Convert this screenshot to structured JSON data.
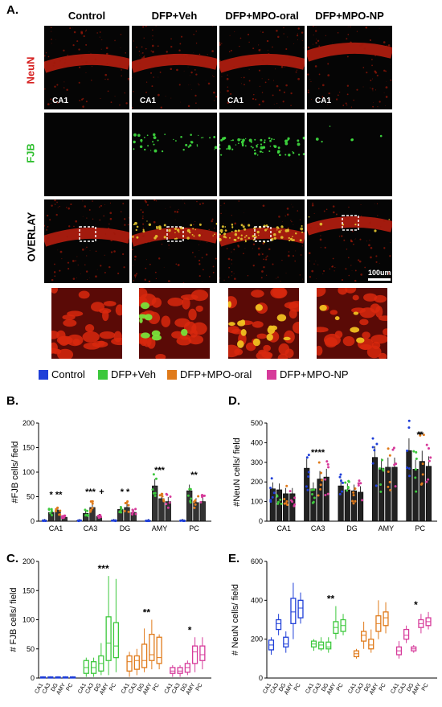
{
  "panel_labels": {
    "A": "A.",
    "B": "B.",
    "C": "C.",
    "D": "D.",
    "E": "E."
  },
  "columns": [
    "Control",
    "DFP+Veh",
    "DFP+MPO-oral",
    "DFP+MPO-NP"
  ],
  "rows": {
    "neun": "NeuN",
    "fjb": "FJB",
    "overlay": "OVERLAY"
  },
  "region_tag": "CA1",
  "scale_bar": "100um",
  "colors": {
    "control": "#1f3fd8",
    "veh": "#3cc83c",
    "oral": "#e07a1a",
    "np": "#d63a9a",
    "neun_label": "#d62020",
    "fjb_label": "#2fbf2f"
  },
  "legend": [
    {
      "label": "Control",
      "color": "#1f3fd8"
    },
    {
      "label": "DFP+Veh",
      "color": "#3cc83c"
    },
    {
      "label": "DFP+MPO-oral",
      "color": "#e07a1a"
    },
    {
      "label": "DFP+MPO-NP",
      "color": "#d63a9a"
    }
  ],
  "chart_data": [
    {
      "id": "B",
      "type": "bar",
      "ylabel": "#FJB cells/ field",
      "ylim": [
        0,
        200
      ],
      "yticks": [
        0,
        50,
        100,
        150,
        200
      ],
      "categories": [
        "CA1",
        "CA3",
        "DG",
        "AMY",
        "PC"
      ],
      "series": [
        {
          "name": "Control",
          "values": [
            1,
            1,
            1,
            1,
            1
          ]
        },
        {
          "name": "DFP+Veh",
          "values": [
            18,
            16,
            24,
            72,
            62
          ]
        },
        {
          "name": "DFP+MPO-oral",
          "values": [
            22,
            28,
            28,
            46,
            38
          ]
        },
        {
          "name": "DFP+MPO-NP",
          "values": [
            8,
            10,
            18,
            40,
            40
          ]
        }
      ],
      "annotations": [
        {
          "cat": "CA1",
          "text": "* **"
        },
        {
          "cat": "CA3",
          "text": "***"
        },
        {
          "cat": "CA3",
          "text": "+"
        },
        {
          "cat": "DG",
          "text": "* *"
        },
        {
          "cat": "AMY",
          "text": "***"
        },
        {
          "cat": "AMY",
          "text": "*"
        },
        {
          "cat": "PC",
          "text": "**"
        }
      ]
    },
    {
      "id": "D",
      "type": "bar",
      "ylabel": "#NeuN cells/ field",
      "ylim": [
        0,
        500
      ],
      "yticks": [
        0,
        100,
        200,
        300,
        400,
        500
      ],
      "categories": [
        "CA1",
        "CA3",
        "DG",
        "AMY",
        "PC"
      ],
      "series": [
        {
          "name": "Control",
          "values": [
            165,
            270,
            180,
            325,
            360
          ]
        },
        {
          "name": "DFP+Veh",
          "values": [
            160,
            165,
            160,
            270,
            265
          ]
        },
        {
          "name": "DFP+MPO-oral",
          "values": [
            140,
            215,
            155,
            275,
            305
          ]
        },
        {
          "name": "DFP+MPO-NP",
          "values": [
            140,
            225,
            148,
            275,
            280
          ]
        }
      ],
      "annotations": [
        {
          "cat": "CA3",
          "text": "****"
        },
        {
          "cat": "PC",
          "text": "**"
        },
        {
          "cat": "PC",
          "text": "*"
        }
      ]
    },
    {
      "id": "C",
      "type": "box",
      "ylabel": "# FJB cells/ field",
      "ylim": [
        0,
        200
      ],
      "yticks": [
        0,
        50,
        100,
        150,
        200
      ],
      "groups": [
        "Control",
        "DFP+Veh",
        "DFP+MPO-oral",
        "DFP+MPO-NP"
      ],
      "regions": [
        "CA1",
        "CA3",
        "DG",
        "AMY",
        "PC"
      ],
      "boxes": [
        [
          [
            0,
            0,
            1,
            2,
            3
          ],
          [
            0,
            0,
            1,
            2,
            3
          ],
          [
            0,
            0,
            1,
            2,
            3
          ],
          [
            0,
            0,
            1,
            2,
            3
          ],
          [
            0,
            0,
            1,
            2,
            3
          ]
        ],
        [
          [
            2,
            8,
            18,
            30,
            35
          ],
          [
            2,
            8,
            18,
            28,
            35
          ],
          [
            5,
            12,
            25,
            38,
            60
          ],
          [
            5,
            30,
            60,
            105,
            175
          ],
          [
            10,
            35,
            55,
            95,
            170
          ]
        ],
        [
          [
            2,
            12,
            28,
            38,
            45
          ],
          [
            5,
            15,
            30,
            38,
            50
          ],
          [
            10,
            18,
            30,
            58,
            85
          ],
          [
            15,
            30,
            40,
            75,
            100
          ],
          [
            15,
            25,
            35,
            70,
            75
          ]
        ],
        [
          [
            2,
            8,
            12,
            18,
            22
          ],
          [
            2,
            8,
            12,
            18,
            22
          ],
          [
            5,
            10,
            18,
            25,
            30
          ],
          [
            10,
            25,
            45,
            55,
            70
          ],
          [
            15,
            30,
            40,
            55,
            70
          ]
        ]
      ],
      "annotations": [
        {
          "group": "DFP+Veh",
          "text": "***"
        },
        {
          "group": "DFP+MPO-oral",
          "text": "**"
        },
        {
          "group": "DFP+MPO-NP",
          "text": "*"
        }
      ]
    },
    {
      "id": "E",
      "type": "box",
      "ylabel": "# NeuN cells/ field",
      "ylim": [
        0,
        600
      ],
      "yticks": [
        0,
        200,
        400,
        600
      ],
      "groups": [
        "Control",
        "DFP+Veh",
        "DFP+MPO-oral",
        "DFP+MPO-NP"
      ],
      "regions": [
        "CA1",
        "CA3",
        "DG",
        "AMY",
        "PC"
      ],
      "boxes": [
        [
          [
            120,
            145,
            170,
            195,
            210
          ],
          [
            220,
            250,
            280,
            300,
            330
          ],
          [
            130,
            160,
            175,
            210,
            240
          ],
          [
            200,
            280,
            340,
            410,
            490
          ],
          [
            280,
            310,
            360,
            400,
            440
          ]
        ],
        [
          [
            140,
            160,
            175,
            190,
            200
          ],
          [
            140,
            150,
            170,
            185,
            210
          ],
          [
            130,
            150,
            160,
            185,
            210
          ],
          [
            200,
            230,
            260,
            290,
            370
          ],
          [
            220,
            240,
            270,
            300,
            330
          ]
        ],
        [
          [
            100,
            110,
            125,
            140,
            150
          ],
          [
            150,
            190,
            220,
            240,
            290
          ],
          [
            130,
            150,
            170,
            200,
            250
          ],
          [
            200,
            240,
            280,
            320,
            400
          ],
          [
            230,
            270,
            310,
            340,
            390
          ]
        ],
        [
          [
            100,
            120,
            140,
            160,
            190
          ],
          [
            180,
            200,
            220,
            250,
            270
          ],
          [
            130,
            140,
            150,
            160,
            170
          ],
          [
            230,
            260,
            280,
            300,
            330
          ],
          [
            250,
            270,
            290,
            310,
            340
          ]
        ]
      ],
      "annotations": [
        {
          "group": "DFP+Veh",
          "text": "**"
        },
        {
          "group": "DFP+MPO-NP",
          "text": "*"
        }
      ]
    }
  ]
}
